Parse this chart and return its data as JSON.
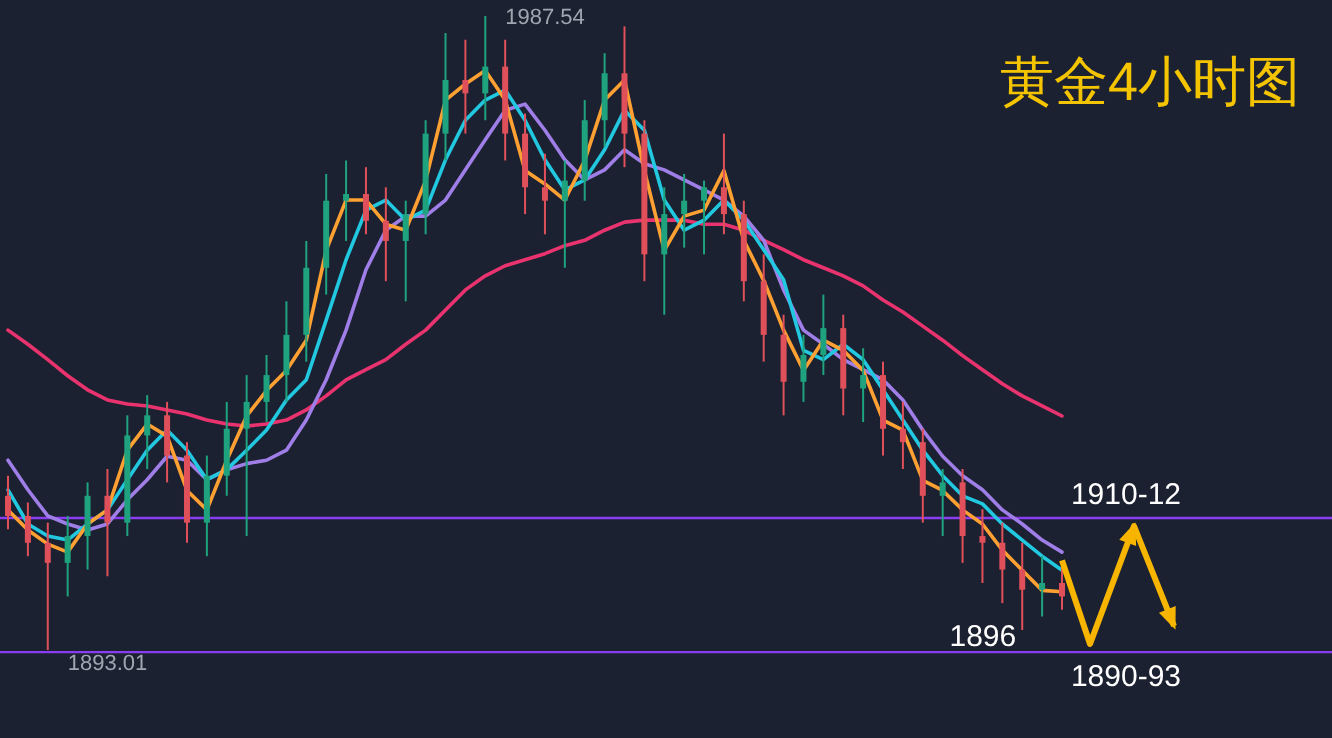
{
  "chart_data": {
    "type": "candlestick",
    "title": "黄金4小时图",
    "categories": [
      null,
      null,
      null,
      null,
      null,
      null,
      null,
      null,
      null,
      null,
      null,
      null,
      null,
      null,
      null,
      null,
      null,
      null,
      null,
      null,
      null,
      null,
      null,
      null,
      null,
      null,
      null,
      null,
      null,
      null,
      null,
      null,
      null,
      null,
      null,
      null,
      null,
      null,
      null,
      null,
      null,
      null,
      null,
      null,
      null,
      null,
      null,
      null,
      null,
      null,
      null,
      null,
      null,
      null
    ],
    "ohlc": [
      [
        1916,
        1919,
        1911,
        1913
      ],
      [
        1913,
        1915,
        1907,
        1909
      ],
      [
        1909,
        1912,
        1893.01,
        1906
      ],
      [
        1906,
        1913,
        1901,
        1910
      ],
      [
        1910,
        1918,
        1905,
        1916
      ],
      [
        1916,
        1920,
        1904,
        1912
      ],
      [
        1912,
        1928,
        1910,
        1925
      ],
      [
        1925,
        1931,
        1920,
        1928
      ],
      [
        1928,
        1930,
        1918,
        1922
      ],
      [
        1922,
        1924,
        1909,
        1912
      ],
      [
        1912,
        1922,
        1907,
        1919
      ],
      [
        1919,
        1930,
        1916,
        1926
      ],
      [
        1926,
        1934,
        1910,
        1930
      ],
      [
        1930,
        1937,
        1927,
        1934
      ],
      [
        1934,
        1945,
        1930,
        1940
      ],
      [
        1940,
        1954,
        1936,
        1950
      ],
      [
        1950,
        1964,
        1946,
        1960
      ],
      [
        1960,
        1966,
        1954,
        1961
      ],
      [
        1961,
        1965,
        1955,
        1957
      ],
      [
        1957,
        1962,
        1948,
        1954
      ],
      [
        1954,
        1960,
        1945,
        1958
      ],
      [
        1958,
        1972,
        1955,
        1970
      ],
      [
        1970,
        1985,
        1966,
        1978
      ],
      [
        1978,
        1984,
        1970,
        1976
      ],
      [
        1976,
        1987.54,
        1972,
        1980
      ],
      [
        1980,
        1984,
        1966,
        1970
      ],
      [
        1970,
        1973,
        1958,
        1962
      ],
      [
        1962,
        1967,
        1955,
        1960
      ],
      [
        1960,
        1966,
        1950,
        1963
      ],
      [
        1963,
        1975,
        1960,
        1972
      ],
      [
        1972,
        1982,
        1968,
        1979
      ],
      [
        1979,
        1986,
        1965,
        1970
      ],
      [
        1970,
        1972,
        1948,
        1952
      ],
      [
        1952,
        1962,
        1943,
        1958
      ],
      [
        1958,
        1964,
        1953,
        1960
      ],
      [
        1960,
        1963,
        1952,
        1962
      ],
      [
        1962,
        1970,
        1955,
        1958
      ],
      [
        1958,
        1960,
        1945,
        1948
      ],
      [
        1948,
        1952,
        1936,
        1940
      ],
      [
        1940,
        1943,
        1928,
        1933
      ],
      [
        1933,
        1940,
        1930,
        1937
      ],
      [
        1937,
        1946,
        1934,
        1941
      ],
      [
        1941,
        1943,
        1928,
        1932
      ],
      [
        1932,
        1938,
        1927,
        1934
      ],
      [
        1934,
        1936,
        1922,
        1926
      ],
      [
        1926,
        1930,
        1920,
        1924
      ],
      [
        1924,
        1926,
        1912,
        1916
      ],
      [
        1916,
        1920,
        1910,
        1918
      ],
      [
        1918,
        1920,
        1906,
        1910
      ],
      [
        1910,
        1914,
        1903,
        1909
      ],
      [
        1909,
        1912,
        1900,
        1905
      ],
      [
        1905,
        1909,
        1896,
        1902
      ],
      [
        1902,
        1907,
        1898,
        1903
      ],
      [
        1903,
        1906,
        1899,
        1901
      ]
    ],
    "series": [
      {
        "type": "line",
        "color": "#e8336f",
        "values": [
          1940.7,
          1938.6,
          1936.3,
          1933.9,
          1931.8,
          1930.3,
          1929.7,
          1929.4,
          1928.8,
          1928.2,
          1927.3,
          1926.7,
          1926.4,
          1926.7,
          1927.3,
          1928.8,
          1930.9,
          1933.3,
          1934.8,
          1936.3,
          1938.6,
          1940.7,
          1943.7,
          1946.7,
          1948.8,
          1950.3,
          1951.2,
          1952.1,
          1953.3,
          1954.1,
          1955.6,
          1956.8,
          1957.1,
          1957.1,
          1957.1,
          1956.5,
          1956.5,
          1955.6,
          1954.1,
          1952.7,
          1951.2,
          1950.0,
          1948.8,
          1947.3,
          1945.2,
          1943.4,
          1941.3,
          1939.2,
          1936.9,
          1934.8,
          1932.7,
          1930.9,
          1929.4,
          1927.9
        ]
      },
      {
        "type": "line",
        "color": "#a07ee8",
        "values": [
          1921.3,
          1916.9,
          1913.0,
          1911.8,
          1910.9,
          1911.8,
          1915.4,
          1918.4,
          1921.9,
          1921.3,
          1918.4,
          1919.9,
          1920.8,
          1921.3,
          1922.8,
          1927.3,
          1933.3,
          1940.7,
          1949.7,
          1955.6,
          1957.7,
          1957.7,
          1960.1,
          1964.6,
          1969.1,
          1973.5,
          1974.4,
          1970.5,
          1966.1,
          1963.1,
          1964.6,
          1967.6,
          1965.5,
          1964.6,
          1963.1,
          1961.6,
          1960.1,
          1957.7,
          1954.1,
          1946.7,
          1940.7,
          1938.6,
          1936.3,
          1934.8,
          1933.3,
          1930.3,
          1925.8,
          1921.9,
          1919.0,
          1916.9,
          1913.9,
          1911.8,
          1909.4,
          1907.6
        ]
      },
      {
        "type": "line",
        "color": "#22c8e0",
        "values": [
          1916.9,
          1911.8,
          1910.0,
          1909.4,
          1911.8,
          1913.9,
          1918.4,
          1922.8,
          1925.8,
          1922.8,
          1918.4,
          1919.9,
          1922.8,
          1925.8,
          1930.3,
          1933.3,
          1942.2,
          1951.2,
          1958.6,
          1960.1,
          1957.1,
          1958.6,
          1966.1,
          1972.0,
          1975.0,
          1976.5,
          1972.0,
          1966.1,
          1961.6,
          1963.1,
          1967.6,
          1973.5,
          1970.5,
          1960.1,
          1955.6,
          1957.1,
          1960.1,
          1957.1,
          1952.7,
          1948.2,
          1937.7,
          1936.3,
          1938.6,
          1936.3,
          1931.8,
          1927.3,
          1922.8,
          1919.0,
          1916.0,
          1914.8,
          1911.8,
          1909.4,
          1907.0,
          1904.9
        ]
      },
      {
        "type": "line",
        "color": "#ffa033",
        "values": [
          1913.9,
          1910.9,
          1908.8,
          1907.6,
          1911.8,
          1913.9,
          1922.8,
          1926.7,
          1924.9,
          1916.8,
          1913.9,
          1921.3,
          1927.9,
          1931.7,
          1934.7,
          1939.2,
          1952.6,
          1960.1,
          1960.1,
          1956.5,
          1955.6,
          1963.0,
          1975.0,
          1977.4,
          1979.4,
          1975.0,
          1964.5,
          1962.5,
          1960.1,
          1966.0,
          1975.0,
          1978.0,
          1964.5,
          1952.6,
          1957.7,
          1958.6,
          1964.5,
          1954.1,
          1948.1,
          1940.7,
          1934.7,
          1939.2,
          1937.7,
          1934.7,
          1927.3,
          1925.8,
          1918.3,
          1916.8,
          1913.9,
          1911.8,
          1907.9,
          1904.9,
          1901.9,
          1901.7
        ]
      }
    ],
    "ref_lines": [
      {
        "axis": "y",
        "value": 1912.7,
        "color": "#8a3cf0"
      },
      {
        "axis": "y",
        "value": 1892.7,
        "color": "#8a3cf0"
      }
    ],
    "annotations": [
      "1987.54",
      "1893.01",
      "1896",
      "1910-12",
      "1890-93"
    ]
  }
}
